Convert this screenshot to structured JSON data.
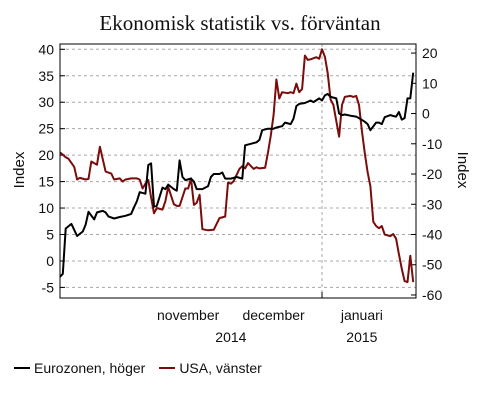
{
  "chart_data": {
    "type": "line",
    "title": "Ekonomisk statistik vs. förväntan",
    "ylabel_left": "Index",
    "ylabel_right": "Index",
    "ylim_left": [
      -7,
      41
    ],
    "yticks_left": [
      40,
      35,
      30,
      25,
      20,
      15,
      10,
      5,
      0,
      -5
    ],
    "ylim_right": [
      -61,
      23
    ],
    "yticks_right": [
      20,
      10,
      0,
      -10,
      -20,
      -30,
      -40,
      -50,
      -60
    ],
    "x_range": [
      "2014-10-01",
      "2015-02-03"
    ],
    "month_labels": [
      {
        "label": "november",
        "date": "2014-11-15"
      },
      {
        "label": "december",
        "date": "2014-12-15"
      },
      {
        "label": "januari",
        "date": "2015-01-15"
      }
    ],
    "year_labels": [
      {
        "label": "2014",
        "date": "2014-11-30"
      },
      {
        "label": "2015",
        "date": "2015-01-15"
      }
    ],
    "year_divider": "2015-01-01",
    "grid": true,
    "legend_position": "bottom-left",
    "series": [
      {
        "name": "USA, vänster",
        "axis": "left",
        "color": "#7a0c0c",
        "points": [
          [
            "2014-10-01",
            20.5
          ],
          [
            "2014-10-02",
            20.1
          ],
          [
            "2014-10-03",
            19.6
          ],
          [
            "2014-10-04",
            19.3
          ],
          [
            "2014-10-06",
            17.8
          ],
          [
            "2014-10-07",
            15.4
          ],
          [
            "2014-10-08",
            15.7
          ],
          [
            "2014-10-10",
            15.4
          ],
          [
            "2014-10-11",
            15.5
          ],
          [
            "2014-10-12",
            18.8
          ],
          [
            "2014-10-14",
            18.2
          ],
          [
            "2014-10-15",
            21.6
          ],
          [
            "2014-10-17",
            16.9
          ],
          [
            "2014-10-18",
            16.7
          ],
          [
            "2014-10-19",
            16.5
          ],
          [
            "2014-10-20",
            15.4
          ],
          [
            "2014-10-22",
            15.6
          ],
          [
            "2014-10-23",
            15.0
          ],
          [
            "2014-10-24",
            15.4
          ],
          [
            "2014-10-26",
            15.6
          ],
          [
            "2014-10-28",
            15.6
          ],
          [
            "2014-10-29",
            15.4
          ],
          [
            "2014-10-30",
            13.7
          ],
          [
            "2014-10-31",
            14.6
          ],
          [
            "2014-11-01",
            15.3
          ],
          [
            "2014-11-02",
            12.0
          ],
          [
            "2014-11-03",
            9.0
          ],
          [
            "2014-11-04",
            10.0
          ],
          [
            "2014-11-06",
            9.7
          ],
          [
            "2014-11-07",
            11.3
          ],
          [
            "2014-11-08",
            14.0
          ],
          [
            "2014-11-10",
            10.7
          ],
          [
            "2014-11-11",
            10.4
          ],
          [
            "2014-11-12",
            10.4
          ],
          [
            "2014-11-14",
            13.7
          ],
          [
            "2014-11-15",
            13.7
          ],
          [
            "2014-11-16",
            15.6
          ],
          [
            "2014-11-17",
            10.6
          ],
          [
            "2014-11-18",
            11.0
          ],
          [
            "2014-11-19",
            12.5
          ],
          [
            "2014-11-20",
            6.0
          ],
          [
            "2014-11-22",
            5.8
          ],
          [
            "2014-11-24",
            5.9
          ],
          [
            "2014-11-26",
            8.1
          ],
          [
            "2014-11-28",
            8.4
          ],
          [
            "2014-11-29",
            14.8
          ],
          [
            "2014-11-30",
            14.6
          ],
          [
            "2014-12-01",
            15.1
          ],
          [
            "2014-12-03",
            17.4
          ],
          [
            "2014-12-04",
            17.9
          ],
          [
            "2014-12-05",
            17.5
          ],
          [
            "2014-12-06",
            18.5
          ],
          [
            "2014-12-08",
            17.4
          ],
          [
            "2014-12-09",
            17.7
          ],
          [
            "2014-12-10",
            17.5
          ],
          [
            "2014-12-12",
            17.6
          ],
          [
            "2014-12-13",
            20.4
          ],
          [
            "2014-12-14",
            23.7
          ],
          [
            "2014-12-15",
            27.6
          ],
          [
            "2014-12-16",
            34.3
          ],
          [
            "2014-12-17",
            30.7
          ],
          [
            "2014-12-18",
            31.9
          ],
          [
            "2014-12-20",
            31.7
          ],
          [
            "2014-12-21",
            31.9
          ],
          [
            "2014-12-22",
            31.7
          ],
          [
            "2014-12-23",
            33.5
          ],
          [
            "2014-12-24",
            31.9
          ],
          [
            "2014-12-25",
            32.5
          ],
          [
            "2014-12-26",
            38.8
          ],
          [
            "2014-12-27",
            38.0
          ],
          [
            "2014-12-28",
            38.1
          ],
          [
            "2014-12-30",
            38.5
          ],
          [
            "2014-12-31",
            38.2
          ],
          [
            "2015-01-01",
            40.0
          ],
          [
            "2015-01-02",
            38.6
          ],
          [
            "2015-01-03",
            35.5
          ],
          [
            "2015-01-04",
            30.5
          ],
          [
            "2015-01-05",
            29.5
          ],
          [
            "2015-01-07",
            23.5
          ],
          [
            "2015-01-08",
            29.5
          ],
          [
            "2015-01-09",
            31.0
          ],
          [
            "2015-01-11",
            31.2
          ],
          [
            "2015-01-12",
            31.0
          ],
          [
            "2015-01-13",
            31.2
          ],
          [
            "2015-01-14",
            29.5
          ],
          [
            "2015-01-15",
            24.6
          ],
          [
            "2015-01-16",
            20.5
          ],
          [
            "2015-01-17",
            16.8
          ],
          [
            "2015-01-18",
            14.1
          ],
          [
            "2015-01-19",
            7.4
          ],
          [
            "2015-01-20",
            6.6
          ],
          [
            "2015-01-21",
            6.2
          ],
          [
            "2015-01-22",
            6.6
          ],
          [
            "2015-01-23",
            5.0
          ],
          [
            "2015-01-25",
            4.7
          ],
          [
            "2015-01-26",
            5.1
          ],
          [
            "2015-01-27",
            4.2
          ],
          [
            "2015-01-28",
            1.3
          ],
          [
            "2015-01-29",
            -1.5
          ],
          [
            "2015-01-30",
            -3.8
          ],
          [
            "2015-01-31",
            -4.0
          ],
          [
            "2015-02-01",
            1.0
          ],
          [
            "2015-02-02",
            -4.0
          ]
        ]
      },
      {
        "name": "Eurozonen, höger",
        "axis": "right",
        "color": "#000000",
        "points": [
          [
            "2014-10-01",
            -54.0
          ],
          [
            "2014-10-02",
            -53.0
          ],
          [
            "2014-10-03",
            -38.0
          ],
          [
            "2014-10-05",
            -36.5
          ],
          [
            "2014-10-07",
            -40.5
          ],
          [
            "2014-10-09",
            -39.0
          ],
          [
            "2014-10-10",
            -36.8
          ],
          [
            "2014-10-11",
            -32.5
          ],
          [
            "2014-10-13",
            -35.0
          ],
          [
            "2014-10-14",
            -32.7
          ],
          [
            "2014-10-16",
            -32.2
          ],
          [
            "2014-10-17",
            -32.7
          ],
          [
            "2014-10-18",
            -34.0
          ],
          [
            "2014-10-20",
            -34.7
          ],
          [
            "2014-10-22",
            -34.2
          ],
          [
            "2014-10-24",
            -33.8
          ],
          [
            "2014-10-26",
            -33.2
          ],
          [
            "2014-10-27",
            -31.0
          ],
          [
            "2014-10-28",
            -29.0
          ],
          [
            "2014-10-29",
            -26.0
          ],
          [
            "2014-10-31",
            -26.5
          ],
          [
            "2014-11-01",
            -17.0
          ],
          [
            "2014-11-02",
            -16.5
          ],
          [
            "2014-11-03",
            -30.8
          ],
          [
            "2014-11-04",
            -30.5
          ],
          [
            "2014-11-06",
            -24.5
          ],
          [
            "2014-11-07",
            -25.0
          ],
          [
            "2014-11-08",
            -23.5
          ],
          [
            "2014-11-10",
            -25.0
          ],
          [
            "2014-11-11",
            -25.5
          ],
          [
            "2014-11-12",
            -15.5
          ],
          [
            "2014-11-13",
            -21.0
          ],
          [
            "2014-11-14",
            -22.0
          ],
          [
            "2014-11-16",
            -21.5
          ],
          [
            "2014-11-17",
            -22.5
          ],
          [
            "2014-11-18",
            -25.0
          ],
          [
            "2014-11-20",
            -25.0
          ],
          [
            "2014-11-22",
            -24.0
          ],
          [
            "2014-11-23",
            -21.0
          ],
          [
            "2014-11-24",
            -20.0
          ],
          [
            "2014-11-26",
            -20.0
          ],
          [
            "2014-11-27",
            -19.5
          ],
          [
            "2014-11-28",
            -21.5
          ],
          [
            "2014-11-30",
            -21.5
          ],
          [
            "2014-12-02",
            -21.0
          ],
          [
            "2014-12-04",
            -21.5
          ],
          [
            "2014-12-05",
            -10.5
          ],
          [
            "2014-12-07",
            -10.0
          ],
          [
            "2014-12-09",
            -9.5
          ],
          [
            "2014-12-10",
            -8.7
          ],
          [
            "2014-12-11",
            -5.5
          ],
          [
            "2014-12-13",
            -5.0
          ],
          [
            "2014-12-15",
            -5.0
          ],
          [
            "2014-12-16",
            -4.6
          ],
          [
            "2014-12-18",
            -4.2
          ],
          [
            "2014-12-19",
            -3.0
          ],
          [
            "2014-12-21",
            -3.5
          ],
          [
            "2014-12-22",
            -1.7
          ],
          [
            "2014-12-23",
            2.5
          ],
          [
            "2014-12-24",
            3.2
          ],
          [
            "2014-12-26",
            3.5
          ],
          [
            "2014-12-28",
            4.3
          ],
          [
            "2014-12-29",
            3.8
          ],
          [
            "2014-12-31",
            5.0
          ],
          [
            "2015-01-01",
            4.3
          ],
          [
            "2015-01-02",
            6.0
          ],
          [
            "2015-01-03",
            6.5
          ],
          [
            "2015-01-04",
            5.5
          ],
          [
            "2015-01-06",
            5.0
          ],
          [
            "2015-01-07",
            0.0
          ],
          [
            "2015-01-08",
            -0.5
          ],
          [
            "2015-01-09",
            -0.3
          ],
          [
            "2015-01-11",
            -0.7
          ],
          [
            "2015-01-13",
            -1.0
          ],
          [
            "2015-01-14",
            -1.5
          ],
          [
            "2015-01-16",
            -2.7
          ],
          [
            "2015-01-17",
            -3.5
          ],
          [
            "2015-01-18",
            -5.5
          ],
          [
            "2015-01-20",
            -3.0
          ],
          [
            "2015-01-21",
            -3.0
          ],
          [
            "2015-01-22",
            -3.5
          ],
          [
            "2015-01-23",
            -1.2
          ],
          [
            "2015-01-25",
            -0.5
          ],
          [
            "2015-01-26",
            -0.8
          ],
          [
            "2015-01-27",
            -1.0
          ],
          [
            "2015-01-28",
            0.5
          ],
          [
            "2015-01-29",
            -2.0
          ],
          [
            "2015-01-30",
            -1.5
          ],
          [
            "2015-01-31",
            5.0
          ],
          [
            "2015-02-01",
            5.0
          ],
          [
            "2015-02-02",
            13.5
          ]
        ]
      }
    ]
  }
}
